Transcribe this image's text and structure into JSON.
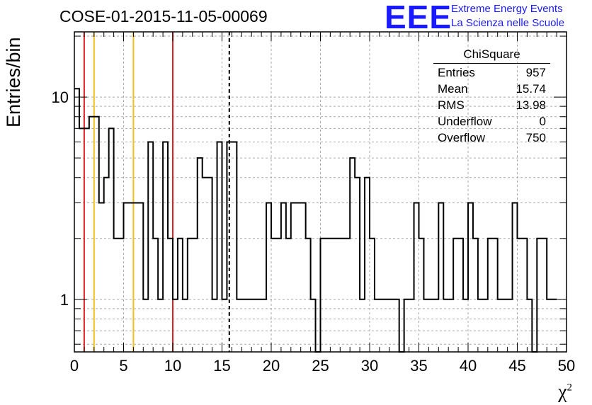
{
  "header": {
    "title": "COSE-01-2015-11-05-00069",
    "logo_mark": "EEE",
    "logo_line1": "Extreme Energy Events",
    "logo_line2": "La Scienza nelle Scuole"
  },
  "stats_box": {
    "title": "ChiSquare",
    "rows": [
      {
        "label": "Entries",
        "value": "957"
      },
      {
        "label": "Mean",
        "value": "15.74"
      },
      {
        "label": "RMS",
        "value": "13.98"
      },
      {
        "label": "Underflow",
        "value": "0"
      },
      {
        "label": "Overflow",
        "value": "750"
      }
    ]
  },
  "chart_data": {
    "type": "histogram",
    "title": "COSE-01-2015-11-05-00069",
    "xlabel": "χ²",
    "ylabel": "Entries/bin",
    "xlim": [
      0,
      50
    ],
    "ylim": [
      0.55,
      21
    ],
    "yscale": "log",
    "grid": true,
    "bin_width": 0.5,
    "x_ticks": [
      "0",
      "5",
      "10",
      "15",
      "20",
      "25",
      "30",
      "35",
      "40",
      "45",
      "50"
    ],
    "y_ticks": [
      "1",
      "10"
    ],
    "values": [
      11,
      7,
      7,
      8,
      8,
      3,
      4,
      7,
      2,
      2,
      3,
      3,
      3,
      3,
      1,
      6,
      2,
      1,
      6,
      2,
      1,
      2,
      1,
      2,
      2,
      5,
      4,
      4,
      1,
      6,
      1,
      6,
      6,
      1,
      1,
      1,
      1,
      1,
      1,
      3,
      2,
      2,
      3,
      2,
      3,
      3,
      3,
      2,
      1,
      0,
      2,
      2,
      2,
      2,
      2,
      2,
      5,
      4,
      1,
      4,
      2,
      1,
      1,
      1,
      1,
      1,
      0,
      1,
      1,
      3,
      2,
      1,
      1,
      1,
      3,
      1,
      1,
      2,
      2,
      1,
      3,
      2,
      1,
      1,
      2,
      2,
      1,
      1,
      1,
      3,
      2,
      2,
      1,
      0,
      2,
      2,
      1,
      1
    ],
    "vertical_lines": [
      {
        "x": 1,
        "color": "#e02020",
        "style": "solid"
      },
      {
        "x": 2,
        "color": "#f0c020",
        "style": "solid"
      },
      {
        "x": 6,
        "color": "#f0c020",
        "style": "solid"
      },
      {
        "x": 10,
        "color": "#e02020",
        "style": "solid"
      },
      {
        "x": 15.74,
        "color": "#000000",
        "style": "dashed"
      }
    ]
  }
}
